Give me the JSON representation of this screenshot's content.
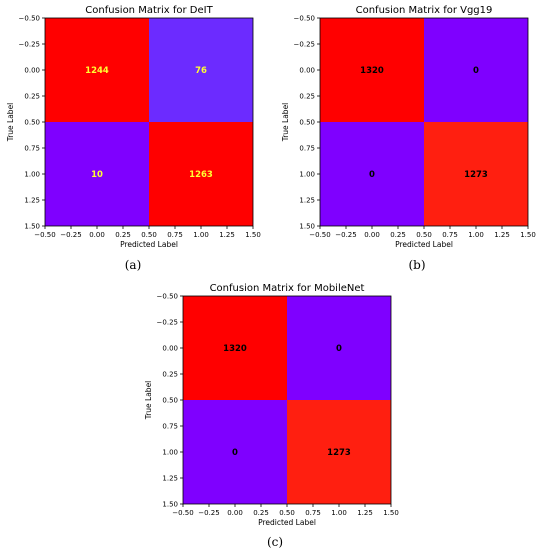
{
  "chart_data": [
    {
      "type": "heatmap",
      "title": "Confusion Matrix for DeIT",
      "xlabel": "Predicted Label",
      "ylabel": "True Label",
      "caption": "(a)",
      "matrix": [
        [
          1244,
          76
        ],
        [
          10,
          1263
        ]
      ],
      "cell_colors": [
        [
          "#ff0000",
          "#6c2bff"
        ],
        [
          "#7f00ff",
          "#ff0000"
        ]
      ],
      "label_color": "#ffff33",
      "x_ticks": [
        "−0.50",
        "−0.25",
        "0.00",
        "0.25",
        "0.50",
        "0.75",
        "1.00",
        "1.25",
        "1.50"
      ],
      "y_ticks": [
        "−0.50",
        "−0.25",
        "0.00",
        "0.25",
        "0.50",
        "0.75",
        "1.00",
        "1.25",
        "1.50"
      ],
      "xlim": [
        -0.5,
        1.5
      ],
      "ylim": [
        -0.5,
        1.5
      ],
      "y_inverted": true
    },
    {
      "type": "heatmap",
      "title": "Confusion Matrix for Vgg19",
      "xlabel": "Predicted Label",
      "ylabel": "True Label",
      "caption": "(b)",
      "matrix": [
        [
          1320,
          0
        ],
        [
          0,
          1273
        ]
      ],
      "cell_colors": [
        [
          "#ff0000",
          "#7f00ff"
        ],
        [
          "#7f00ff",
          "#ff1f10"
        ]
      ],
      "label_color": "#000000",
      "x_ticks": [
        "−0.50",
        "−0.25",
        "0.00",
        "0.25",
        "0.50",
        "0.75",
        "1.00",
        "1.25",
        "1.50"
      ],
      "y_ticks": [
        "−0.50",
        "−0.25",
        "0.00",
        "0.25",
        "0.50",
        "0.75",
        "1.00",
        "1.25",
        "1.50"
      ],
      "xlim": [
        -0.5,
        1.5
      ],
      "ylim": [
        -0.5,
        1.5
      ],
      "y_inverted": true
    },
    {
      "type": "heatmap",
      "title": "Confusion Matrix for MobileNet",
      "xlabel": "Predicted Label",
      "ylabel": "True Label",
      "caption": "(c)",
      "matrix": [
        [
          1320,
          0
        ],
        [
          0,
          1273
        ]
      ],
      "cell_colors": [
        [
          "#ff0000",
          "#7f00ff"
        ],
        [
          "#7f00ff",
          "#ff1f10"
        ]
      ],
      "label_color": "#000000",
      "x_ticks": [
        "−0.50",
        "−0.25",
        "0.00",
        "0.25",
        "0.50",
        "0.75",
        "1.00",
        "1.25",
        "1.50"
      ],
      "y_ticks": [
        "−0.50",
        "−0.25",
        "0.00",
        "0.25",
        "0.50",
        "0.75",
        "1.00",
        "1.25",
        "1.50"
      ],
      "xlim": [
        -0.5,
        1.5
      ],
      "ylim": [
        -0.5,
        1.5
      ],
      "y_inverted": true
    }
  ]
}
